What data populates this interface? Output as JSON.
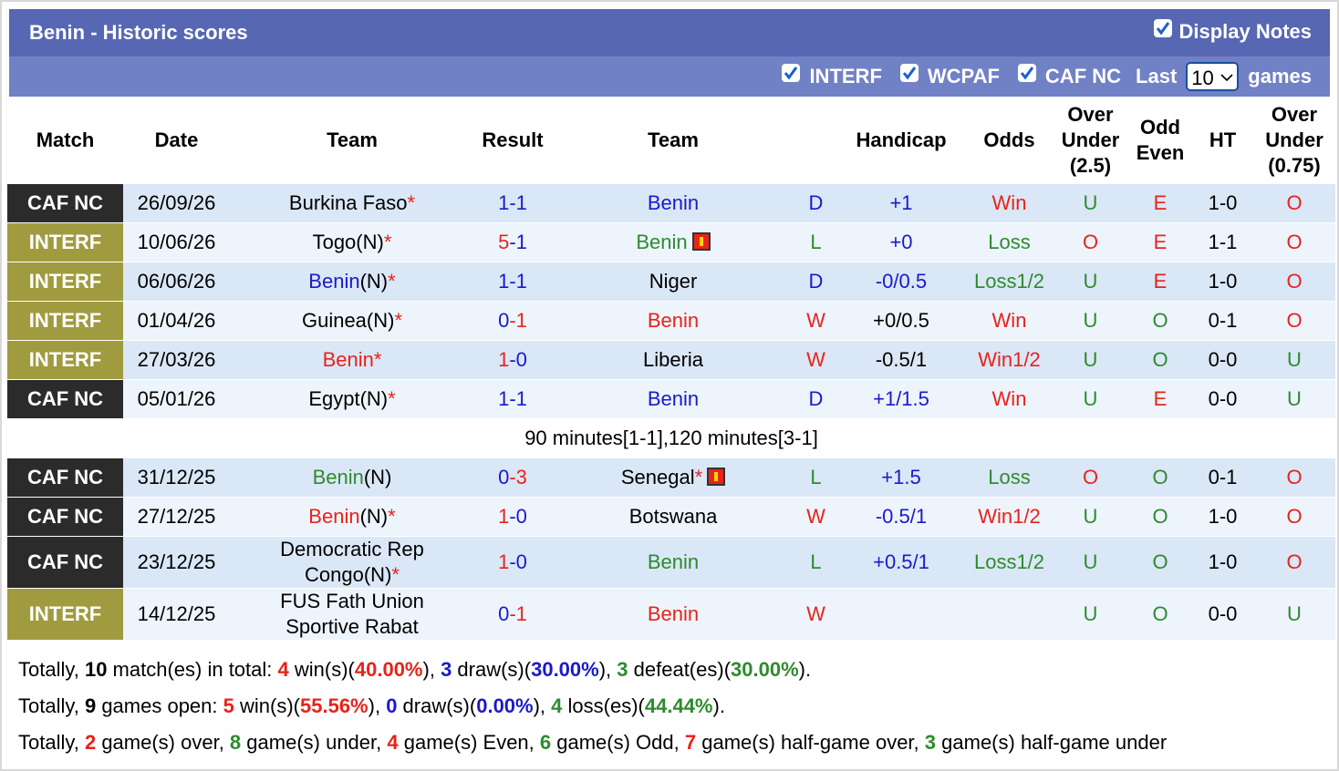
{
  "header": {
    "title": "Benin - Historic scores",
    "display_notes": "Display Notes",
    "filters": [
      "INTERF",
      "WCPAF",
      "CAF NC"
    ],
    "last": "Last",
    "count": "10",
    "games": "games"
  },
  "table": {
    "columns": [
      "Match",
      "Date",
      "Team",
      "Result",
      "Team",
      "Handicap",
      "Odds",
      "Over Under (2.5)",
      "Odd Even",
      "HT",
      "Over Under (0.75)"
    ],
    "rows": [
      {
        "league": "CAF NC",
        "league_bg": "#2b2b2b",
        "date": "26/09/26",
        "home": [
          [
            "Burkina Faso",
            "#000000"
          ],
          [
            "*",
            "#e8231b"
          ]
        ],
        "result": [
          [
            "1",
            "#1a1acc"
          ],
          [
            "-1",
            "#1a1acc"
          ]
        ],
        "away": [
          [
            "Benin",
            "#1a1acc"
          ]
        ],
        "red_card": false,
        "wdl": [
          "D",
          "#1a1acc"
        ],
        "handicap": [
          "+1",
          "#1a1acc"
        ],
        "odds": [
          "Win",
          "#e8231b"
        ],
        "ou": [
          "U",
          "#2e8b2e"
        ],
        "oe": [
          "E",
          "#e8231b"
        ],
        "ht": "1-0",
        "ou2": [
          "O",
          "#e8231b"
        ]
      },
      {
        "league": "INTERF",
        "league_bg": "#a09b3e",
        "date": "10/06/26",
        "home": [
          [
            "Togo",
            "#000000"
          ],
          [
            "(N)",
            "#000000"
          ],
          [
            "*",
            "#e8231b"
          ]
        ],
        "result": [
          [
            "5",
            "#e8231b"
          ],
          [
            "-1",
            "#1a1acc"
          ]
        ],
        "away": [
          [
            "Benin",
            "#2e8b2e"
          ]
        ],
        "red_card": true,
        "wdl": [
          "L",
          "#2e8b2e"
        ],
        "handicap": [
          "+0",
          "#1a1acc"
        ],
        "odds": [
          "Loss",
          "#2e8b2e"
        ],
        "ou": [
          "O",
          "#e8231b"
        ],
        "oe": [
          "E",
          "#e8231b"
        ],
        "ht": "1-1",
        "ou2": [
          "O",
          "#e8231b"
        ]
      },
      {
        "league": "INTERF",
        "league_bg": "#a09b3e",
        "date": "06/06/26",
        "home": [
          [
            "Benin",
            "#1a1acc"
          ],
          [
            "(N)",
            "#000000"
          ],
          [
            "*",
            "#e8231b"
          ]
        ],
        "result": [
          [
            "1",
            "#1a1acc"
          ],
          [
            "-1",
            "#1a1acc"
          ]
        ],
        "away": [
          [
            "Niger",
            "#000000"
          ]
        ],
        "red_card": false,
        "wdl": [
          "D",
          "#1a1acc"
        ],
        "handicap": [
          "-0/0.5",
          "#1a1acc"
        ],
        "odds": [
          "Loss1/2",
          "#2e8b2e"
        ],
        "ou": [
          "U",
          "#2e8b2e"
        ],
        "oe": [
          "E",
          "#e8231b"
        ],
        "ht": "1-0",
        "ou2": [
          "O",
          "#e8231b"
        ]
      },
      {
        "league": "INTERF",
        "league_bg": "#a09b3e",
        "date": "01/04/26",
        "home": [
          [
            "Guinea",
            "#000000"
          ],
          [
            "(N)",
            "#000000"
          ],
          [
            "*",
            "#e8231b"
          ]
        ],
        "result": [
          [
            "0",
            "#1a1acc"
          ],
          [
            "-1",
            "#e8231b"
          ]
        ],
        "away": [
          [
            "Benin",
            "#e8231b"
          ]
        ],
        "red_card": false,
        "wdl": [
          "W",
          "#e8231b"
        ],
        "handicap": [
          "+0/0.5",
          "#000000"
        ],
        "odds": [
          "Win",
          "#e8231b"
        ],
        "ou": [
          "U",
          "#2e8b2e"
        ],
        "oe": [
          "O",
          "#2e8b2e"
        ],
        "ht": "0-1",
        "ou2": [
          "O",
          "#e8231b"
        ]
      },
      {
        "league": "INTERF",
        "league_bg": "#a09b3e",
        "date": "27/03/26",
        "home": [
          [
            "Benin",
            "#e8231b"
          ],
          [
            "*",
            "#e8231b"
          ]
        ],
        "result": [
          [
            "1",
            "#e8231b"
          ],
          [
            "-0",
            "#1a1acc"
          ]
        ],
        "away": [
          [
            "Liberia",
            "#000000"
          ]
        ],
        "red_card": false,
        "wdl": [
          "W",
          "#e8231b"
        ],
        "handicap": [
          "-0.5/1",
          "#000000"
        ],
        "odds": [
          "Win1/2",
          "#e8231b"
        ],
        "ou": [
          "U",
          "#2e8b2e"
        ],
        "oe": [
          "O",
          "#2e8b2e"
        ],
        "ht": "0-0",
        "ou2": [
          "U",
          "#2e8b2e"
        ]
      },
      {
        "league": "CAF NC",
        "league_bg": "#2b2b2b",
        "date": "05/01/26",
        "home": [
          [
            "Egypt",
            "#000000"
          ],
          [
            "(N)",
            "#000000"
          ],
          [
            "*",
            "#e8231b"
          ]
        ],
        "result": [
          [
            "1",
            "#1a1acc"
          ],
          [
            "-1",
            "#1a1acc"
          ]
        ],
        "away": [
          [
            "Benin",
            "#1a1acc"
          ]
        ],
        "red_card": false,
        "wdl": [
          "D",
          "#1a1acc"
        ],
        "handicap": [
          "+1/1.5",
          "#1a1acc"
        ],
        "odds": [
          "Win",
          "#e8231b"
        ],
        "ou": [
          "U",
          "#2e8b2e"
        ],
        "oe": [
          "E",
          "#e8231b"
        ],
        "ht": "0-0",
        "ou2": [
          "U",
          "#2e8b2e"
        ]
      },
      {
        "note": "90 minutes[1-1],120 minutes[3-1]"
      },
      {
        "league": "CAF NC",
        "league_bg": "#2b2b2b",
        "date": "31/12/25",
        "home": [
          [
            "Benin",
            "#2e8b2e"
          ],
          [
            "(N)",
            "#000000"
          ]
        ],
        "result": [
          [
            "0",
            "#1a1acc"
          ],
          [
            "-3",
            "#e8231b"
          ]
        ],
        "away": [
          [
            "Senegal",
            "#000000"
          ],
          [
            "*",
            "#e8231b"
          ]
        ],
        "red_card": true,
        "wdl": [
          "L",
          "#2e8b2e"
        ],
        "handicap": [
          "+1.5",
          "#1a1acc"
        ],
        "odds": [
          "Loss",
          "#2e8b2e"
        ],
        "ou": [
          "O",
          "#e8231b"
        ],
        "oe": [
          "O",
          "#2e8b2e"
        ],
        "ht": "0-1",
        "ou2": [
          "O",
          "#e8231b"
        ]
      },
      {
        "league": "CAF NC",
        "league_bg": "#2b2b2b",
        "date": "27/12/25",
        "home": [
          [
            "Benin",
            "#e8231b"
          ],
          [
            "(N)",
            "#000000"
          ],
          [
            "*",
            "#e8231b"
          ]
        ],
        "result": [
          [
            "1",
            "#e8231b"
          ],
          [
            "-0",
            "#1a1acc"
          ]
        ],
        "away": [
          [
            "Botswana",
            "#000000"
          ]
        ],
        "red_card": false,
        "wdl": [
          "W",
          "#e8231b"
        ],
        "handicap": [
          "-0.5/1",
          "#1a1acc"
        ],
        "odds": [
          "Win1/2",
          "#e8231b"
        ],
        "ou": [
          "U",
          "#2e8b2e"
        ],
        "oe": [
          "O",
          "#2e8b2e"
        ],
        "ht": "1-0",
        "ou2": [
          "O",
          "#e8231b"
        ]
      },
      {
        "league": "CAF NC",
        "league_bg": "#2b2b2b",
        "date": "23/12/25",
        "home": [
          [
            "Democratic Rep Congo",
            "#000000"
          ],
          [
            "(N)",
            "#000000"
          ],
          [
            "*",
            "#e8231b"
          ]
        ],
        "result": [
          [
            "1",
            "#e8231b"
          ],
          [
            "-0",
            "#1a1acc"
          ]
        ],
        "away": [
          [
            "Benin",
            "#2e8b2e"
          ]
        ],
        "red_card": false,
        "wdl": [
          "L",
          "#2e8b2e"
        ],
        "handicap": [
          "+0.5/1",
          "#1a1acc"
        ],
        "odds": [
          "Loss1/2",
          "#2e8b2e"
        ],
        "ou": [
          "U",
          "#2e8b2e"
        ],
        "oe": [
          "O",
          "#2e8b2e"
        ],
        "ht": "1-0",
        "ou2": [
          "O",
          "#e8231b"
        ]
      },
      {
        "league": "INTERF",
        "league_bg": "#a09b3e",
        "date": "14/12/25",
        "home": [
          [
            "FUS Fath Union Sportive Rabat",
            "#000000"
          ]
        ],
        "result": [
          [
            "0",
            "#1a1acc"
          ],
          [
            "-1",
            "#e8231b"
          ]
        ],
        "away": [
          [
            "Benin",
            "#e8231b"
          ]
        ],
        "red_card": false,
        "wdl": [
          "W",
          "#e8231b"
        ],
        "handicap": null,
        "odds": null,
        "ou": [
          "U",
          "#2e8b2e"
        ],
        "oe": [
          "O",
          "#2e8b2e"
        ],
        "ht": "0-0",
        "ou2": [
          "U",
          "#2e8b2e"
        ]
      }
    ]
  },
  "summary": [
    [
      [
        "Totally, ",
        null
      ],
      [
        "10",
        "#000000"
      ],
      [
        " match(es) in total: ",
        null
      ],
      [
        "4",
        "#e8231b"
      ],
      [
        " win(s)(",
        null
      ],
      [
        "40.00%",
        "#e8231b"
      ],
      [
        "), ",
        null
      ],
      [
        "3",
        "#1a1acc"
      ],
      [
        " draw(s)(",
        null
      ],
      [
        "30.00%",
        "#1a1acc"
      ],
      [
        "), ",
        null
      ],
      [
        "3",
        "#2e8b2e"
      ],
      [
        " defeat(es)(",
        null
      ],
      [
        "30.00%",
        "#2e8b2e"
      ],
      [
        ").",
        null
      ]
    ],
    [
      [
        "Totally, ",
        null
      ],
      [
        "9",
        "#000000"
      ],
      [
        " games open: ",
        null
      ],
      [
        "5",
        "#e8231b"
      ],
      [
        " win(s)(",
        null
      ],
      [
        "55.56%",
        "#e8231b"
      ],
      [
        "), ",
        null
      ],
      [
        "0",
        "#1a1acc"
      ],
      [
        " draw(s)(",
        null
      ],
      [
        "0.00%",
        "#1a1acc"
      ],
      [
        "), ",
        null
      ],
      [
        "4",
        "#2e8b2e"
      ],
      [
        " loss(es)(",
        null
      ],
      [
        "44.44%",
        "#2e8b2e"
      ],
      [
        ").",
        null
      ]
    ],
    [
      [
        "Totally, ",
        null
      ],
      [
        "2",
        "#e8231b"
      ],
      [
        " game(s) over, ",
        null
      ],
      [
        "8",
        "#2e8b2e"
      ],
      [
        " game(s) under, ",
        null
      ],
      [
        "4",
        "#e8231b"
      ],
      [
        " game(s) Even, ",
        null
      ],
      [
        "6",
        "#2e8b2e"
      ],
      [
        " game(s) Odd, ",
        null
      ],
      [
        "7",
        "#e8231b"
      ],
      [
        " game(s) half-game over, ",
        null
      ],
      [
        "3",
        "#2e8b2e"
      ],
      [
        " game(s) half-game under",
        null
      ]
    ]
  ]
}
